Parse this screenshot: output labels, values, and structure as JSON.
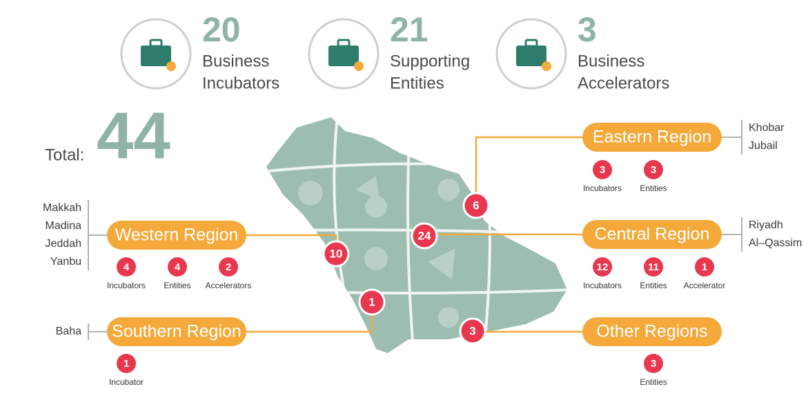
{
  "summary": [
    {
      "value": 20,
      "label": [
        "Business",
        "Incubators"
      ]
    },
    {
      "value": 21,
      "label": [
        "Supporting",
        "Entities"
      ]
    },
    {
      "value": 3,
      "label": [
        "Business",
        "Accelerators"
      ]
    }
  ],
  "total": {
    "label": "Total:",
    "value": 44
  },
  "regions": [
    {
      "name": "Eastern Region",
      "cities": [
        "Khobar",
        "Jubail"
      ],
      "map_count": 6,
      "stats": [
        {
          "value": 3,
          "label": "Incubators"
        },
        {
          "value": 3,
          "label": "Entities"
        }
      ]
    },
    {
      "name": "Central Region",
      "cities": [
        "Riyadh",
        "Al–Qassim"
      ],
      "map_count": 24,
      "stats": [
        {
          "value": 12,
          "label": "Incubators"
        },
        {
          "value": 11,
          "label": "Entities"
        },
        {
          "value": 1,
          "label": "Accelerator"
        }
      ]
    },
    {
      "name": "Other Regions",
      "cities": [],
      "map_count": 3,
      "stats": [
        {
          "value": 3,
          "label": "Entities"
        }
      ]
    },
    {
      "name": "Western Region",
      "cities": [
        "Makkah",
        "Madina",
        "Jeddah",
        "Yanbu"
      ],
      "map_count": 10,
      "stats": [
        {
          "value": 4,
          "label": "Incubators"
        },
        {
          "value": 4,
          "label": "Entities"
        },
        {
          "value": 2,
          "label": "Accelerators"
        }
      ]
    },
    {
      "name": "Southern Region",
      "cities": [
        "Baha"
      ],
      "map_count": 1,
      "stats": [
        {
          "value": 1,
          "label": "Incubator"
        }
      ]
    }
  ]
}
